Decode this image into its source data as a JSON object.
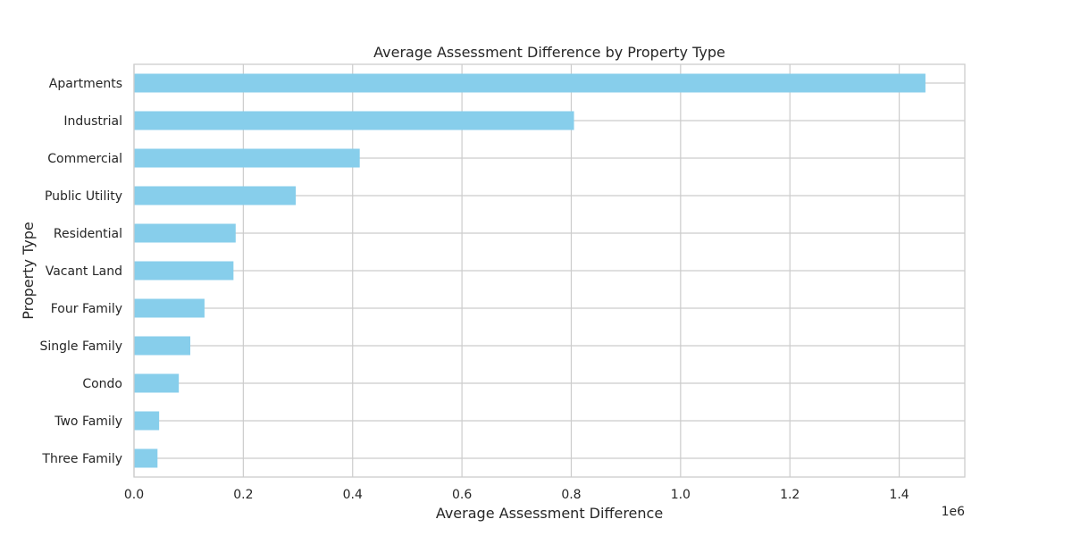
{
  "chart_data": {
    "type": "bar",
    "orientation": "horizontal",
    "title": "Average Assessment Difference by Property Type",
    "xlabel": "Average Assessment Difference",
    "ylabel": "Property Type",
    "x_offset_label": "1e6",
    "xlim": [
      0,
      1.52
    ],
    "xticks": [
      0.0,
      0.2,
      0.4,
      0.6,
      0.8,
      1.0,
      1.2,
      1.4
    ],
    "xtick_labels": [
      "0.0",
      "0.2",
      "0.4",
      "0.6",
      "0.8",
      "1.0",
      "1.2",
      "1.4"
    ],
    "grid": true,
    "bar_color": "#87CEEB",
    "categories": [
      "Apartments",
      "Industrial",
      "Commercial",
      "Public Utility",
      "Residential",
      "Vacant Land",
      "Four Family",
      "Single Family",
      "Condo",
      "Two Family",
      "Three Family"
    ],
    "values": [
      1.448,
      0.805,
      0.413,
      0.296,
      0.186,
      0.182,
      0.129,
      0.103,
      0.082,
      0.046,
      0.043
    ]
  }
}
